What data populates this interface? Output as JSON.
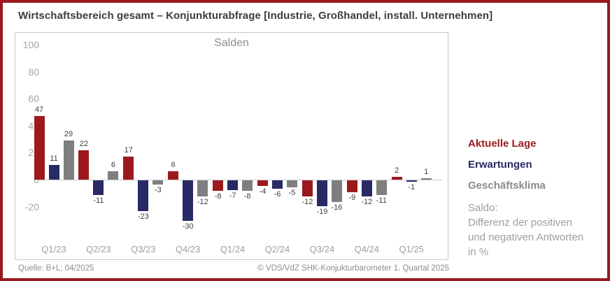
{
  "title": "Wirtschaftsbereich gesamt – Konjunkturabfrage [Industrie, Großhandel, install. Unternehmen]",
  "chart_data": {
    "type": "bar",
    "title": "Salden",
    "categories": [
      "Q1/23",
      "Q2/23",
      "Q3/23",
      "Q4/23",
      "Q1/24",
      "Q2/24",
      "Q3/24",
      "Q4/24",
      "Q1/25"
    ],
    "series": [
      {
        "name": "Aktuelle Lage",
        "color": "#9c1a1d",
        "values": [
          47,
          22,
          17,
          6,
          -8,
          -4,
          -12,
          -9,
          2
        ]
      },
      {
        "name": "Erwartungen",
        "color": "#272a64",
        "values": [
          11,
          -11,
          -23,
          -30,
          -7,
          -6,
          -19,
          -12,
          -1
        ]
      },
      {
        "name": "Geschäftsklima",
        "color": "#7f7f7f",
        "values": [
          29,
          6,
          -3,
          -12,
          -8,
          -5,
          -16,
          -11,
          1
        ]
      }
    ],
    "yticks": [
      100,
      80,
      60,
      40,
      20,
      0,
      -20
    ],
    "ylim": [
      -38,
      108
    ],
    "grid": false,
    "value_labels": true,
    "legend_position": "right"
  },
  "legend_note": {
    "lines": [
      "Saldo:",
      "Differenz der positiven",
      "und negativen Antworten",
      "in %"
    ]
  },
  "footer": {
    "source": "Quelle: B+L; 04/2025",
    "copyright": "© VDS/VdZ SHK-Konjukturbarometer 1. Quartal 2025"
  },
  "colors": {
    "frame_border": "#9a1a1c",
    "accent_red": "#9c1a1d",
    "accent_blue": "#272a64",
    "accent_gray": "#7f7f7f",
    "legend_gray": "#8a8a8a"
  }
}
